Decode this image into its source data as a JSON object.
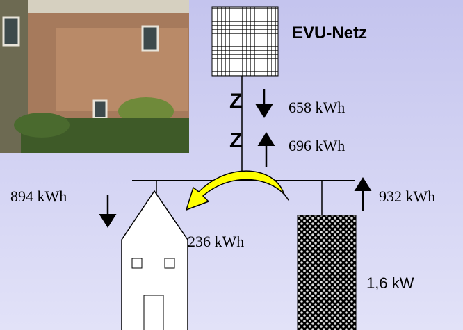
{
  "grid_label": "EVU-Netz",
  "meters": [
    {
      "symbol": "Z",
      "value": "658 kWh"
    },
    {
      "symbol": "Z",
      "value": "696 kWh"
    }
  ],
  "house_consumption": "894 kWh",
  "pv_production": "932 kWh",
  "self_consumption": "236 kWh",
  "pv_power": "1,6 kW"
}
